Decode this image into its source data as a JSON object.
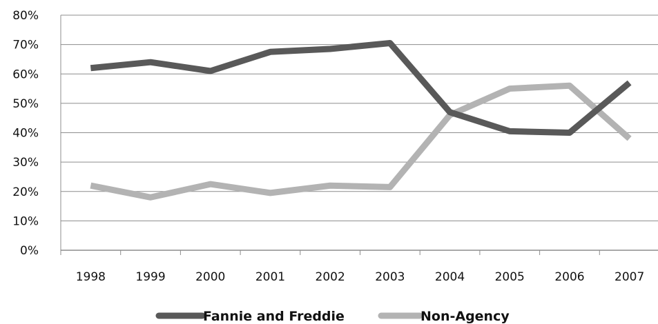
{
  "chart_data": {
    "type": "line",
    "title": "",
    "xlabel": "",
    "ylabel": "",
    "categories": [
      "1998",
      "1999",
      "2000",
      "2001",
      "2002",
      "2003",
      "2004",
      "2005",
      "2006",
      "2007"
    ],
    "y_ticks": [
      "0%",
      "10%",
      "20%",
      "30%",
      "40%",
      "50%",
      "60%",
      "70%",
      "80%"
    ],
    "ylim": [
      0,
      80
    ],
    "grid": "horizontal",
    "legend_position": "bottom",
    "series": [
      {
        "name": "Fannie and Freddie",
        "color": "#595959",
        "values": [
          62,
          64,
          61,
          67.5,
          68.5,
          70.5,
          47,
          40.5,
          40,
          57
        ]
      },
      {
        "name": "Non-Agency",
        "color": "#b3b3b3",
        "values": [
          22,
          18,
          22.5,
          19.5,
          22,
          21.5,
          46,
          55,
          56,
          38
        ]
      }
    ]
  }
}
